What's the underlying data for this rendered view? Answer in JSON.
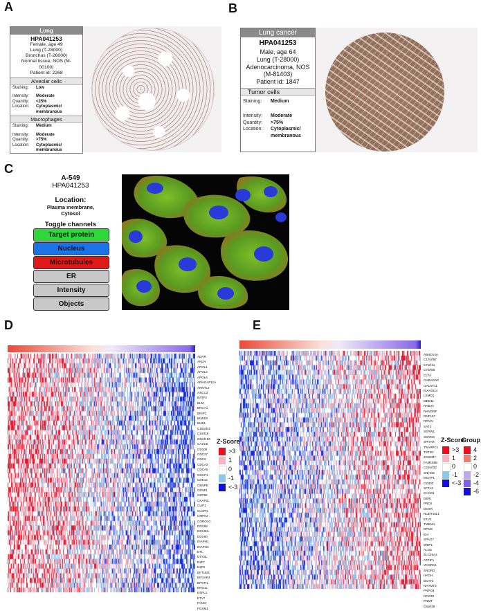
{
  "panel_labels": {
    "a": "A",
    "b": "B",
    "c": "C",
    "d": "D",
    "e": "E"
  },
  "panel_a": {
    "header": "Lung",
    "id": "HPA041253",
    "meta": [
      "Female, age 49",
      "Lung (T-28000)",
      "Bronchus (T-26000)",
      "Normal tissue, NOS (M-",
      "00100)",
      "Patient id: 2268"
    ],
    "sections": [
      {
        "title": "Alveolar cells",
        "rows": [
          {
            "k": "Staining:",
            "v": "Low"
          },
          {
            "k": "Intensity:",
            "v": "Moderate"
          },
          {
            "k": "Quantity:",
            "v": "<25%"
          },
          {
            "k": "Location:",
            "v": "Cytoplasmic/ membranous"
          }
        ]
      },
      {
        "title": "Macrophages",
        "rows": [
          {
            "k": "Staining:",
            "v": "Medium"
          },
          {
            "k": "Intensity:",
            "v": "Moderate"
          },
          {
            "k": "Quantity:",
            "v": ">75%"
          },
          {
            "k": "Location:",
            "v": "Cytoplasmic/ membranous"
          }
        ]
      }
    ]
  },
  "panel_b": {
    "header": "Lung cancer",
    "id": "HPA041253",
    "meta": [
      "Male, age 64",
      "Lung (T-28000)",
      "Adenocarcinoma, NOS",
      "(M-81403)",
      "Patient id: 1847"
    ],
    "section": "Tumor cells",
    "rows": [
      {
        "k": "Staining:",
        "v": "Medium"
      },
      {
        "k": "Intensity:",
        "v": "Moderate"
      },
      {
        "k": "Quantity:",
        "v": ">75%"
      },
      {
        "k": "Location:",
        "v": "Cytoplasmic/ membranous"
      }
    ]
  },
  "panel_c": {
    "cell_line": "A-549",
    "id": "HPA041253",
    "location_title": "Location:",
    "location": [
      "Plasma membrane,",
      "Cytosol"
    ],
    "toggle_title": "Toggle channels",
    "buttons": [
      {
        "label": "Target protein",
        "color": "#2ed83a"
      },
      {
        "label": "Nucleus",
        "color": "#1a73e8"
      },
      {
        "label": "Microtubules",
        "color": "#e01818"
      },
      {
        "label": "ER",
        "color": "#c8c8c8"
      },
      {
        "label": "Intensity",
        "color": "#c8c8c8"
      },
      {
        "label": "Objects",
        "color": "#c8c8c8"
      }
    ]
  },
  "panel_d": {
    "genes": [
      "ADAR",
      "ANLN",
      "APOL1",
      "APOL2",
      "APOL6",
      "ARHGAP11A",
      "ARNTL2",
      "ASCC3",
      "BATF2",
      "BLM",
      "BRCA1",
      "BRIP1",
      "BUB1B",
      "BUB1",
      "C15orf42",
      "C2orf18",
      "C6orf150",
      "CASC5",
      "CD109",
      "CDC27",
      "CDC6",
      "CDCA2",
      "CDCA5",
      "CDCP1",
      "CDK12",
      "CENPE",
      "CENPI",
      "CEP55",
      "CKAP2L",
      "CLIP1",
      "CLSPN",
      "CMPK2",
      "CORO1C",
      "DDX58",
      "DDX60L",
      "DDX60",
      "DIAPH1",
      "DIAPH3",
      "DTL",
      "DTX3L",
      "E2F7",
      "E2F8",
      "EFTUD2",
      "EIF2AK2",
      "EPSTI1",
      "ERO1L",
      "ESPL1",
      "ETV7",
      "FANCI",
      "FOXM1"
    ],
    "legend_title": "Z-Score",
    "legend": [
      {
        "label": ">3",
        "color": "#e8101e"
      },
      {
        "label": "1",
        "color": "#f4b4c2"
      },
      {
        "label": "0",
        "color": "#ffffff"
      },
      {
        "label": "-1",
        "color": "#8ec8e8"
      },
      {
        "label": "<-3",
        "color": "#1010d8"
      }
    ]
  },
  "panel_e": {
    "genes": [
      "ABHD14A",
      "C17orf97",
      "C7orf41",
      "C7orf65",
      "CLTA",
      "GABARAP",
      "GALNT11",
      "KIAA0114",
      "LSMD1",
      "MED11",
      "RAB4A",
      "RANGRF",
      "RNF157",
      "RPAIN",
      "SAT2",
      "SEPW1",
      "SMYD3",
      "SPHAR",
      "TRAPPC1",
      "TSTD1",
      "ZSWIM7",
      "FAM165B",
      "C22orf32",
      "SNHG8",
      "MOAP1",
      "CD302",
      "SFTA3",
      "CHAD1",
      "DERI",
      "PRC6",
      "DCXR",
      "NUDT16L1",
      "ETV2",
      "TMEM4",
      "DPM3",
      "ID4",
      "SPAG7",
      "WBP1",
      "ALG5",
      "SLC25A4",
      "ATPIF1",
      "VKORC1",
      "SNORD",
      "HAGH",
      "BCAT2",
      "NAAMT3",
      "PNPO4",
      "ROGDI",
      "PNMT",
      "C6orf48"
    ],
    "legend_title": "Z-Score",
    "legend": [
      {
        "label": ">3",
        "color": "#e8101e"
      },
      {
        "label": "1",
        "color": "#f4b4c2"
      },
      {
        "label": "0",
        "color": "#ffffff"
      },
      {
        "label": "-1",
        "color": "#8ec8e8"
      },
      {
        "label": "<-3",
        "color": "#1010d8"
      }
    ],
    "group_title": "Group",
    "group": [
      {
        "label": "4",
        "color": "#e8101e"
      },
      {
        "label": "2",
        "color": "#f07a6a"
      },
      {
        "label": "0",
        "color": "#ffffff"
      },
      {
        "label": "-2",
        "color": "#c0a8f0"
      },
      {
        "label": "-4",
        "color": "#8060e8"
      },
      {
        "label": "-6",
        "color": "#1010d8"
      }
    ]
  }
}
